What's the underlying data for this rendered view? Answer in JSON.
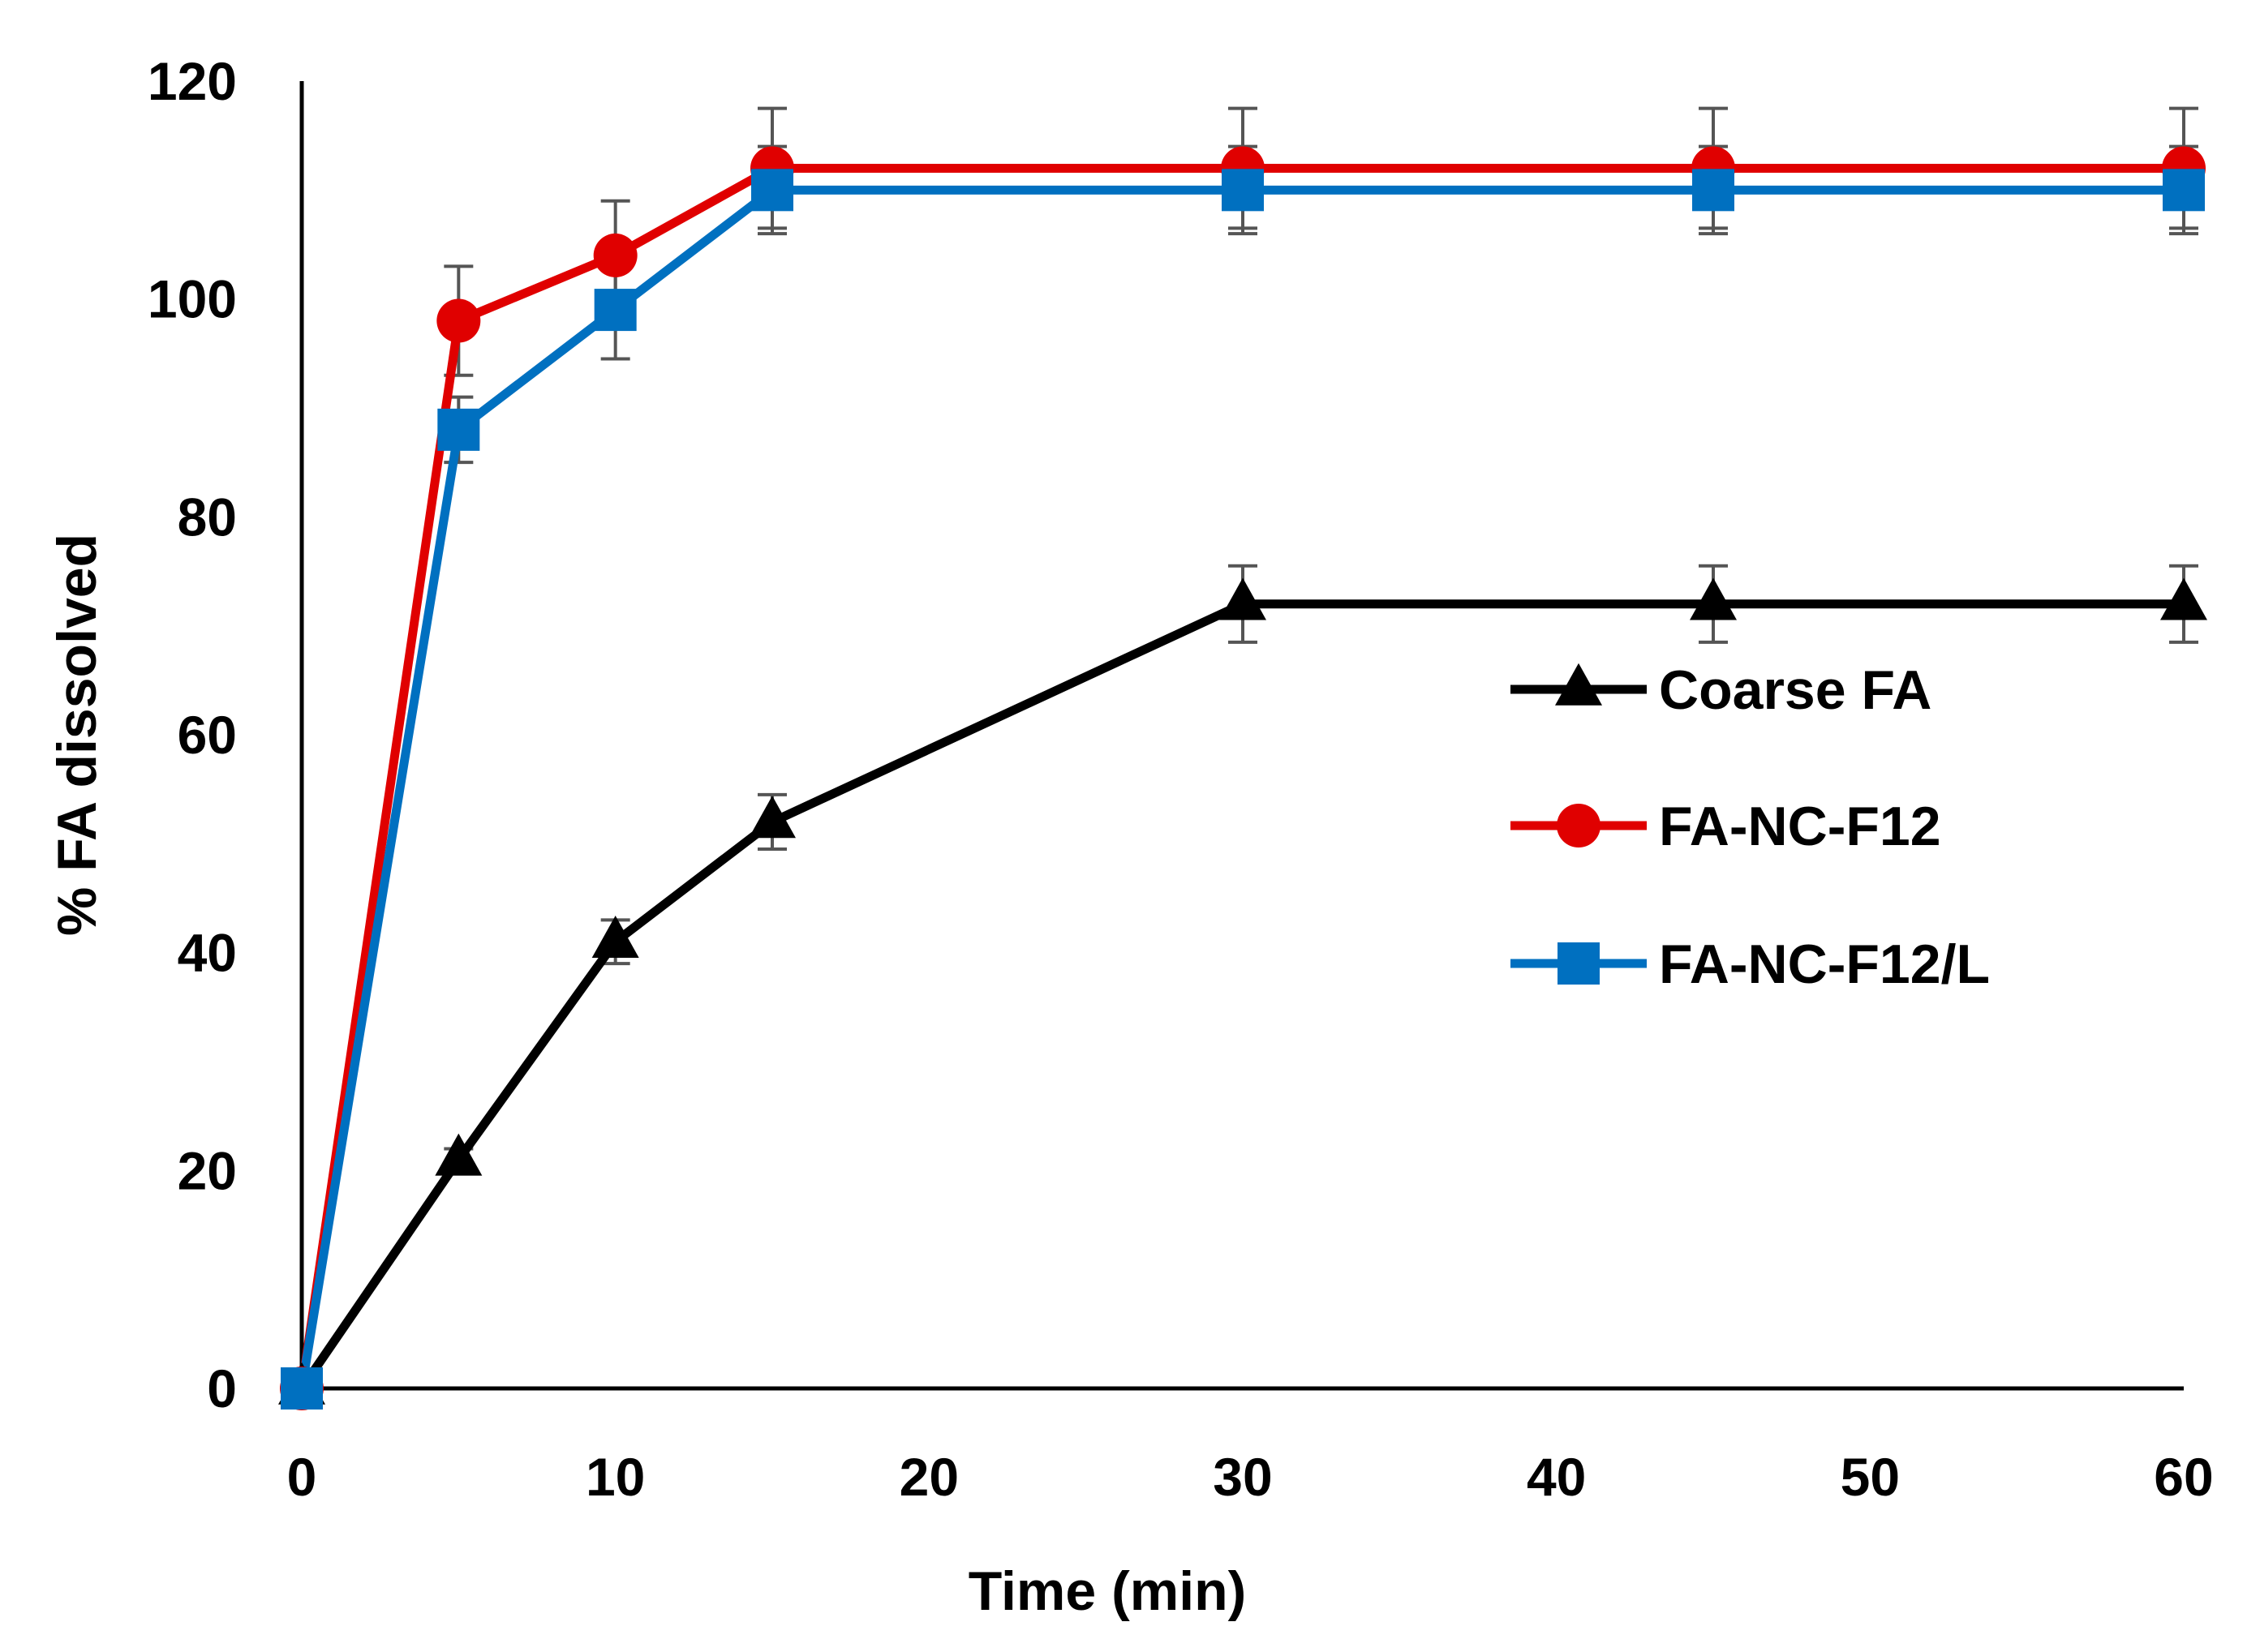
{
  "chart_data": {
    "type": "line",
    "title": "",
    "xlabel": "Time (min)",
    "ylabel": "% FA dissolved",
    "xlim": [
      0,
      60
    ],
    "ylim": [
      0,
      120
    ],
    "xticks": [
      0,
      10,
      20,
      30,
      40,
      50,
      60
    ],
    "yticks": [
      0,
      20,
      40,
      60,
      80,
      100,
      120
    ],
    "grid": false,
    "legend_position": "right-middle",
    "series": [
      {
        "name": "Coarse FA",
        "color": "#000000",
        "marker": "triangle",
        "x": [
          0,
          5,
          10,
          15,
          30,
          45,
          60
        ],
        "y": [
          0,
          21,
          41,
          52,
          72,
          72,
          72
        ],
        "error": [
          0,
          1,
          2,
          2.5,
          3.5,
          3.5,
          3.5
        ]
      },
      {
        "name": "FA-NC-F12",
        "color": "#e00000",
        "marker": "circle",
        "x": [
          0,
          5,
          10,
          15,
          30,
          45,
          60
        ],
        "y": [
          0,
          98,
          104,
          112,
          112,
          112,
          112
        ],
        "error": [
          0,
          5,
          5,
          5.5,
          5.5,
          5.5,
          5.5
        ]
      },
      {
        "name": "FA-NC-F12/L",
        "color": "#0070c0",
        "marker": "square",
        "x": [
          0,
          5,
          10,
          15,
          30,
          45,
          60
        ],
        "y": [
          0,
          88,
          99,
          110,
          110,
          110,
          110
        ],
        "error": [
          0,
          3,
          4.5,
          4,
          4,
          4,
          4
        ]
      }
    ]
  }
}
